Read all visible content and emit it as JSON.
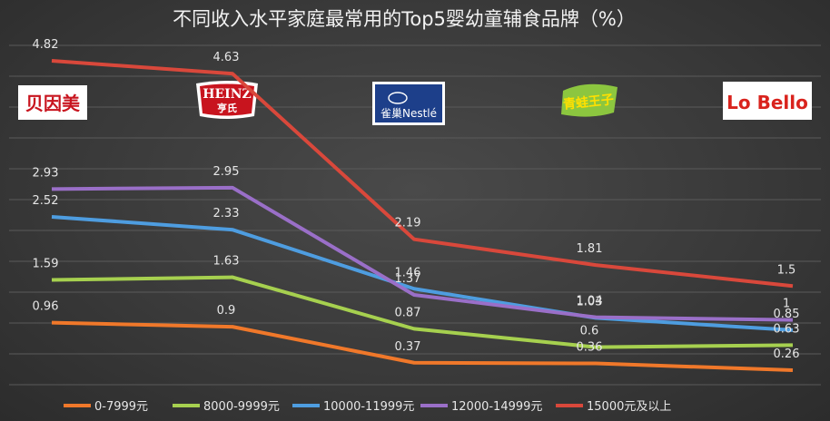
{
  "chart_data": {
    "type": "line",
    "title": "不同收入水平家庭最常用的Top5婴幼童辅食品牌（%）",
    "categories": [
      "贝因美",
      "HEINZ 亨氏",
      "雀巢 Nestlé",
      "青蛙王子",
      "Lo Bello"
    ],
    "ylim": [
      0,
      5
    ],
    "grid": true,
    "legend_position": "bottom",
    "series": [
      {
        "name": "0-7999元",
        "color": "#f0782a",
        "values": [
          0.96,
          0.9,
          0.37,
          0.36,
          0.26
        ]
      },
      {
        "name": "8000-9999元",
        "color": "#a6d04f",
        "values": [
          1.59,
          1.63,
          0.87,
          0.6,
          0.63
        ]
      },
      {
        "name": "10000-11999元",
        "color": "#4e9de0",
        "values": [
          2.52,
          2.33,
          1.46,
          1.03,
          0.85
        ]
      },
      {
        "name": "12000-14999元",
        "color": "#9a6fc8",
        "values": [
          2.93,
          2.95,
          1.37,
          1.04,
          1
        ]
      },
      {
        "name": "15000元及以上",
        "color": "#d9483b",
        "values": [
          4.82,
          4.63,
          2.19,
          1.81,
          1.5
        ]
      }
    ]
  },
  "logos": [
    {
      "text": "贝因美",
      "icon": "beingmate-logo"
    },
    {
      "text": "HEINZ 亨氏",
      "icon": "heinz-logo"
    },
    {
      "text": "雀巢 Nestlé",
      "icon": "nestle-logo"
    },
    {
      "text": "青蛙王子",
      "icon": "frog-prince-logo"
    },
    {
      "text": "Lo Bello",
      "icon": "lobello-logo"
    }
  ]
}
